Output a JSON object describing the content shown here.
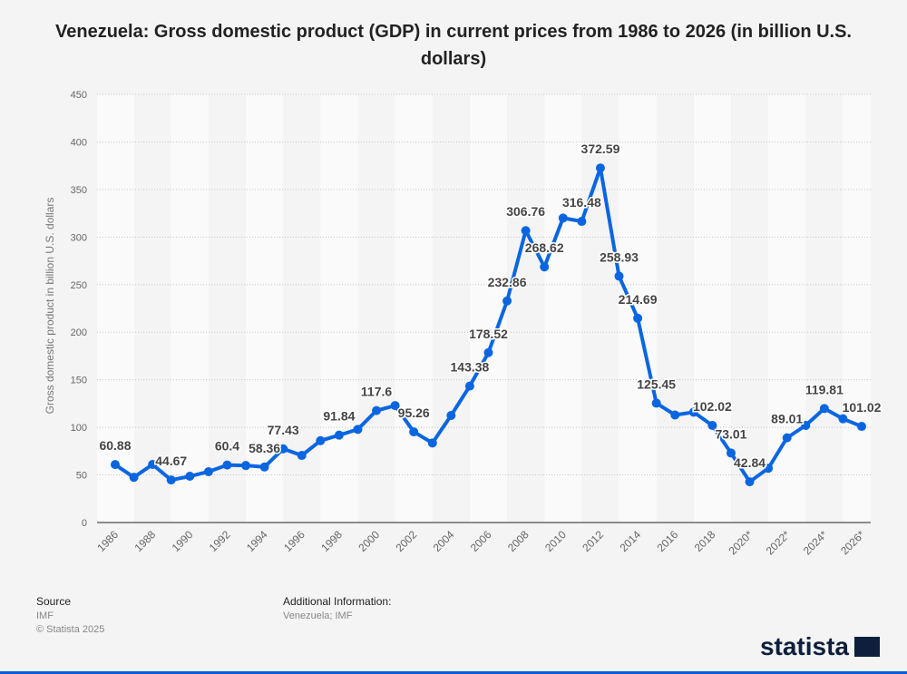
{
  "chart_data": {
    "type": "line",
    "title": "Venezuela: Gross domestic product (GDP) in current prices from 1986 to 2026 (in billion U.S. dollars)",
    "xlabel": "",
    "ylabel": "Gross domestic product in billion U.S. dollars",
    "ylim": [
      0,
      450
    ],
    "yticks": [
      0,
      50,
      100,
      150,
      200,
      250,
      300,
      350,
      400,
      450
    ],
    "grid": true,
    "x": [
      "1986",
      "1987",
      "1988",
      "1989",
      "1990",
      "1991",
      "1992",
      "1993",
      "1994",
      "1995",
      "1996",
      "1997",
      "1998",
      "1999",
      "2000",
      "2001",
      "2002",
      "2003",
      "2004",
      "2005",
      "2006",
      "2007",
      "2008",
      "2009",
      "2010",
      "2011",
      "2012",
      "2013",
      "2014",
      "2015",
      "2016",
      "2017",
      "2018",
      "2019",
      "2020*",
      "2021*",
      "2022*",
      "2023*",
      "2024*",
      "2025*",
      "2026*"
    ],
    "xtick_labels": [
      "1986",
      "1988",
      "1990",
      "1992",
      "1994",
      "1996",
      "1998",
      "2000",
      "2002",
      "2004",
      "2006",
      "2008",
      "2010",
      "2012",
      "2014",
      "2016",
      "2018",
      "2020*",
      "2022*",
      "2024*",
      "2026*"
    ],
    "series": [
      {
        "name": "GDP",
        "color": "#0a66e0",
        "values": [
          60.88,
          47.5,
          61.0,
          44.67,
          48.6,
          53.4,
          60.4,
          59.9,
          58.36,
          77.43,
          70.5,
          86.0,
          91.84,
          97.9,
          117.6,
          122.9,
          95.26,
          83.6,
          112.5,
          143.38,
          178.52,
          232.86,
          306.76,
          268.62,
          320.0,
          316.48,
          372.59,
          258.93,
          214.69,
          125.45,
          113.0,
          116.0,
          102.02,
          73.01,
          42.84,
          57.0,
          89.01,
          102.0,
          119.81,
          109.0,
          101.02
        ],
        "labeled": {
          "1986": "60.88",
          "1989": "44.67",
          "1992": "60.4",
          "1994": "58.36",
          "1995": "77.43",
          "1998": "91.84",
          "2000": "117.6",
          "2002": "95.26",
          "2005": "143.38",
          "2006": "178.52",
          "2007": "232.86",
          "2008": "306.76",
          "2009": "268.62",
          "2011": "316.48",
          "2012": "372.59",
          "2013": "258.93",
          "2014": "214.69",
          "2015": "125.45",
          "2018": "102.02",
          "2019": "73.01",
          "2020*": "42.84",
          "2022*": "89.01",
          "2024*": "119.81",
          "2026*": "101.02"
        }
      }
    ]
  },
  "footer": {
    "source_label": "Source",
    "source_value": "IMF",
    "copyright": "© Statista 2025",
    "additional_label": "Additional Information:",
    "additional_value": "Venezuela; IMF"
  },
  "brand": "statista"
}
